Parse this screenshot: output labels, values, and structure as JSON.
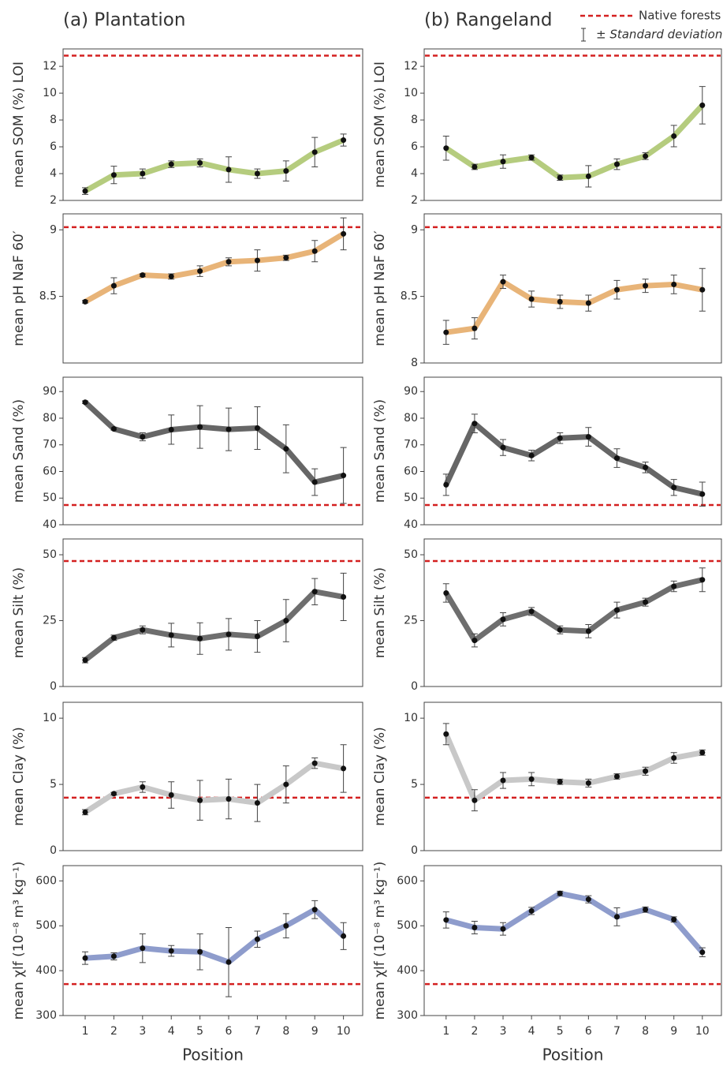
{
  "legend": {
    "reference": "Native forests",
    "error": "± Standard deviation"
  },
  "chart_data": [
    {
      "type": "line",
      "title": "(a) Plantation",
      "ylabel": "mean SOM (%) LOI",
      "x": [
        1,
        2,
        3,
        4,
        5,
        6,
        7,
        8,
        9,
        10
      ],
      "xlim": [
        0.23,
        10.67
      ],
      "ylim": [
        2,
        13.3
      ],
      "yticks": [
        2,
        4,
        6,
        8,
        10,
        12
      ],
      "native_forest": 12.8,
      "native_color": "#d42020",
      "series": [
        {
          "color": "#b5cc7e",
          "values": [
            2.7,
            3.9,
            4.0,
            4.7,
            4.8,
            4.3,
            4.0,
            4.2,
            5.6,
            6.5
          ],
          "errors": [
            0.25,
            0.65,
            0.35,
            0.25,
            0.3,
            0.95,
            0.35,
            0.75,
            1.1,
            0.45
          ]
        }
      ]
    },
    {
      "type": "line",
      "title": "(b) Rangeland",
      "ylabel": "mean SOM (%) LOI",
      "x": [
        1,
        2,
        3,
        4,
        5,
        6,
        7,
        8,
        9,
        10
      ],
      "xlim": [
        0.23,
        10.67
      ],
      "ylim": [
        2,
        13.3
      ],
      "yticks": [
        2,
        4,
        6,
        8,
        10,
        12
      ],
      "native_forest": 12.8,
      "native_color": "#d42020",
      "series": [
        {
          "color": "#b5cc7e",
          "values": [
            5.9,
            4.5,
            4.9,
            5.2,
            3.7,
            3.8,
            4.7,
            5.3,
            6.8,
            9.1
          ],
          "errors": [
            0.9,
            0.2,
            0.5,
            0.2,
            0.2,
            0.8,
            0.4,
            0.25,
            0.8,
            1.4
          ]
        }
      ]
    },
    {
      "type": "line",
      "ylabel": "mean pH NaF 60′",
      "x": [
        1,
        2,
        3,
        4,
        5,
        6,
        7,
        8,
        9,
        10
      ],
      "xlim": [
        0.23,
        10.67
      ],
      "ylim": [
        8,
        9.12
      ],
      "yticks": [
        8.5,
        9
      ],
      "native_forest": 9.02,
      "native_color": "#d42020",
      "series": [
        {
          "color": "#e8b478",
          "values": [
            8.46,
            8.58,
            8.66,
            8.65,
            8.69,
            8.76,
            8.77,
            8.79,
            8.84,
            8.97
          ],
          "errors": [
            0.01,
            0.06,
            0.01,
            0.02,
            0.04,
            0.03,
            0.08,
            0.02,
            0.08,
            0.12
          ]
        }
      ]
    },
    {
      "type": "line",
      "ylabel": "mean pH NaF 60′",
      "x": [
        1,
        2,
        3,
        4,
        5,
        6,
        7,
        8,
        9,
        10
      ],
      "xlim": [
        0.23,
        10.67
      ],
      "ylim": [
        8,
        9.12
      ],
      "yticks": [
        8,
        8.5,
        9
      ],
      "native_forest": 9.02,
      "native_color": "#d42020",
      "series": [
        {
          "color": "#e8b478",
          "values": [
            8.23,
            8.26,
            8.61,
            8.48,
            8.46,
            8.45,
            8.55,
            8.58,
            8.59,
            8.55
          ],
          "errors": [
            0.09,
            0.08,
            0.05,
            0.06,
            0.05,
            0.06,
            0.07,
            0.05,
            0.07,
            0.16
          ]
        }
      ]
    },
    {
      "type": "line",
      "ylabel": "mean Sand (%)",
      "x": [
        1,
        2,
        3,
        4,
        5,
        6,
        7,
        8,
        9,
        10
      ],
      "xlim": [
        0.23,
        10.67
      ],
      "ylim": [
        40,
        95.4
      ],
      "yticks": [
        40,
        50,
        60,
        70,
        80,
        90
      ],
      "native_forest": 47.4,
      "native_color": "#d42020",
      "series": [
        {
          "color": "#666666",
          "values": [
            86,
            76,
            73,
            75.7,
            76.7,
            75.8,
            76.3,
            68.5,
            56,
            58.5
          ],
          "errors": [
            0.5,
            0.5,
            1.5,
            5.5,
            8,
            8,
            8,
            9,
            5,
            10.5
          ]
        }
      ]
    },
    {
      "type": "line",
      "ylabel": "mean Sand (%)",
      "x": [
        1,
        2,
        3,
        4,
        5,
        6,
        7,
        8,
        9,
        10
      ],
      "xlim": [
        0.23,
        10.67
      ],
      "ylim": [
        40,
        95.4
      ],
      "yticks": [
        40,
        50,
        60,
        70,
        80,
        90
      ],
      "native_forest": 47.4,
      "native_color": "#d42020",
      "series": [
        {
          "color": "#666666",
          "values": [
            55,
            78,
            69,
            66,
            72.5,
            73,
            65,
            61.5,
            54,
            51.5
          ],
          "errors": [
            4,
            3.5,
            3,
            2,
            2,
            3.5,
            3.5,
            2,
            3,
            4.5
          ]
        }
      ]
    },
    {
      "type": "line",
      "ylabel": "mean Silt (%)",
      "x": [
        1,
        2,
        3,
        4,
        5,
        6,
        7,
        8,
        9,
        10
      ],
      "xlim": [
        0.23,
        10.67
      ],
      "ylim": [
        0,
        56
      ],
      "yticks": [
        0,
        25,
        50
      ],
      "native_forest": 47.6,
      "native_color": "#d42020",
      "series": [
        {
          "color": "#6e6e6e",
          "values": [
            10,
            18.5,
            21.5,
            19.5,
            18.2,
            19.8,
            19,
            25,
            36,
            34
          ],
          "errors": [
            1,
            1,
            1.5,
            4.5,
            6,
            6,
            6,
            8,
            5,
            9
          ]
        }
      ]
    },
    {
      "type": "line",
      "ylabel": "mean Silt (%)",
      "x": [
        1,
        2,
        3,
        4,
        5,
        6,
        7,
        8,
        9,
        10
      ],
      "xlim": [
        0.23,
        10.67
      ],
      "ylim": [
        0,
        56
      ],
      "yticks": [
        0,
        25,
        50
      ],
      "native_forest": 47.6,
      "native_color": "#d42020",
      "series": [
        {
          "color": "#6e6e6e",
          "values": [
            35.5,
            17.5,
            25.5,
            28.5,
            21.5,
            21,
            29,
            32,
            38,
            40.5
          ],
          "errors": [
            3.5,
            2.5,
            2.5,
            1.5,
            1.5,
            2.5,
            3,
            1.5,
            2,
            4.5
          ]
        }
      ]
    },
    {
      "type": "line",
      "ylabel": "mean Clay (%)",
      "x": [
        1,
        2,
        3,
        4,
        5,
        6,
        7,
        8,
        9,
        10
      ],
      "xlim": [
        0.23,
        10.67
      ],
      "ylim": [
        0,
        11.2
      ],
      "yticks": [
        0,
        5,
        10
      ],
      "native_forest": 4.0,
      "native_color": "#d42020",
      "series": [
        {
          "color": "#c8c8c8",
          "values": [
            2.9,
            4.3,
            4.8,
            4.2,
            3.8,
            3.9,
            3.6,
            5.0,
            6.6,
            6.2
          ],
          "errors": [
            0.2,
            0.1,
            0.4,
            1.0,
            1.5,
            1.5,
            1.4,
            1.4,
            0.4,
            1.8
          ]
        }
      ]
    },
    {
      "type": "line",
      "ylabel": "mean Clay (%)",
      "x": [
        1,
        2,
        3,
        4,
        5,
        6,
        7,
        8,
        9,
        10
      ],
      "xlim": [
        0.23,
        10.67
      ],
      "ylim": [
        0,
        11.2
      ],
      "yticks": [
        0,
        5,
        10
      ],
      "native_forest": 4.0,
      "native_color": "#d42020",
      "series": [
        {
          "color": "#c8c8c8",
          "values": [
            8.8,
            3.8,
            5.3,
            5.4,
            5.2,
            5.1,
            5.6,
            6.0,
            7.0,
            7.4
          ],
          "errors": [
            0.8,
            0.8,
            0.6,
            0.5,
            0.2,
            0.3,
            0.2,
            0.3,
            0.4,
            0.2
          ]
        }
      ]
    },
    {
      "type": "line",
      "ylabel": "mean χlf (10⁻⁸ m³ kg⁻¹)",
      "xlabel": "Position",
      "x": [
        1,
        2,
        3,
        4,
        5,
        6,
        7,
        8,
        9,
        10
      ],
      "xticks": [
        1,
        2,
        3,
        4,
        5,
        6,
        7,
        8,
        9,
        10
      ],
      "xlim": [
        0.23,
        10.67
      ],
      "ylim": [
        300,
        634
      ],
      "yticks": [
        300,
        400,
        500,
        600
      ],
      "native_forest": 370,
      "native_color": "#d42020",
      "series": [
        {
          "color": "#8e9ccc",
          "values": [
            428,
            432,
            450,
            444,
            442,
            419,
            470,
            500,
            536,
            477
          ],
          "errors": [
            14,
            8,
            32,
            12,
            40,
            77,
            18,
            27,
            20,
            30
          ]
        }
      ]
    },
    {
      "type": "line",
      "ylabel": "mean χlf (10⁻⁸ m³ kg⁻¹)",
      "xlabel": "Position",
      "x": [
        1,
        2,
        3,
        4,
        5,
        6,
        7,
        8,
        9,
        10
      ],
      "xticks": [
        1,
        2,
        3,
        4,
        5,
        6,
        7,
        8,
        9,
        10
      ],
      "xlim": [
        0.23,
        10.67
      ],
      "ylim": [
        300,
        634
      ],
      "yticks": [
        300,
        400,
        500,
        600
      ],
      "native_forest": 370,
      "native_color": "#d42020",
      "series": [
        {
          "color": "#8e9ccc",
          "values": [
            513,
            496,
            493,
            533,
            572,
            559,
            520,
            536,
            514,
            441
          ],
          "errors": [
            18,
            14,
            14,
            8,
            5,
            8,
            20,
            6,
            6,
            10
          ]
        }
      ]
    }
  ]
}
